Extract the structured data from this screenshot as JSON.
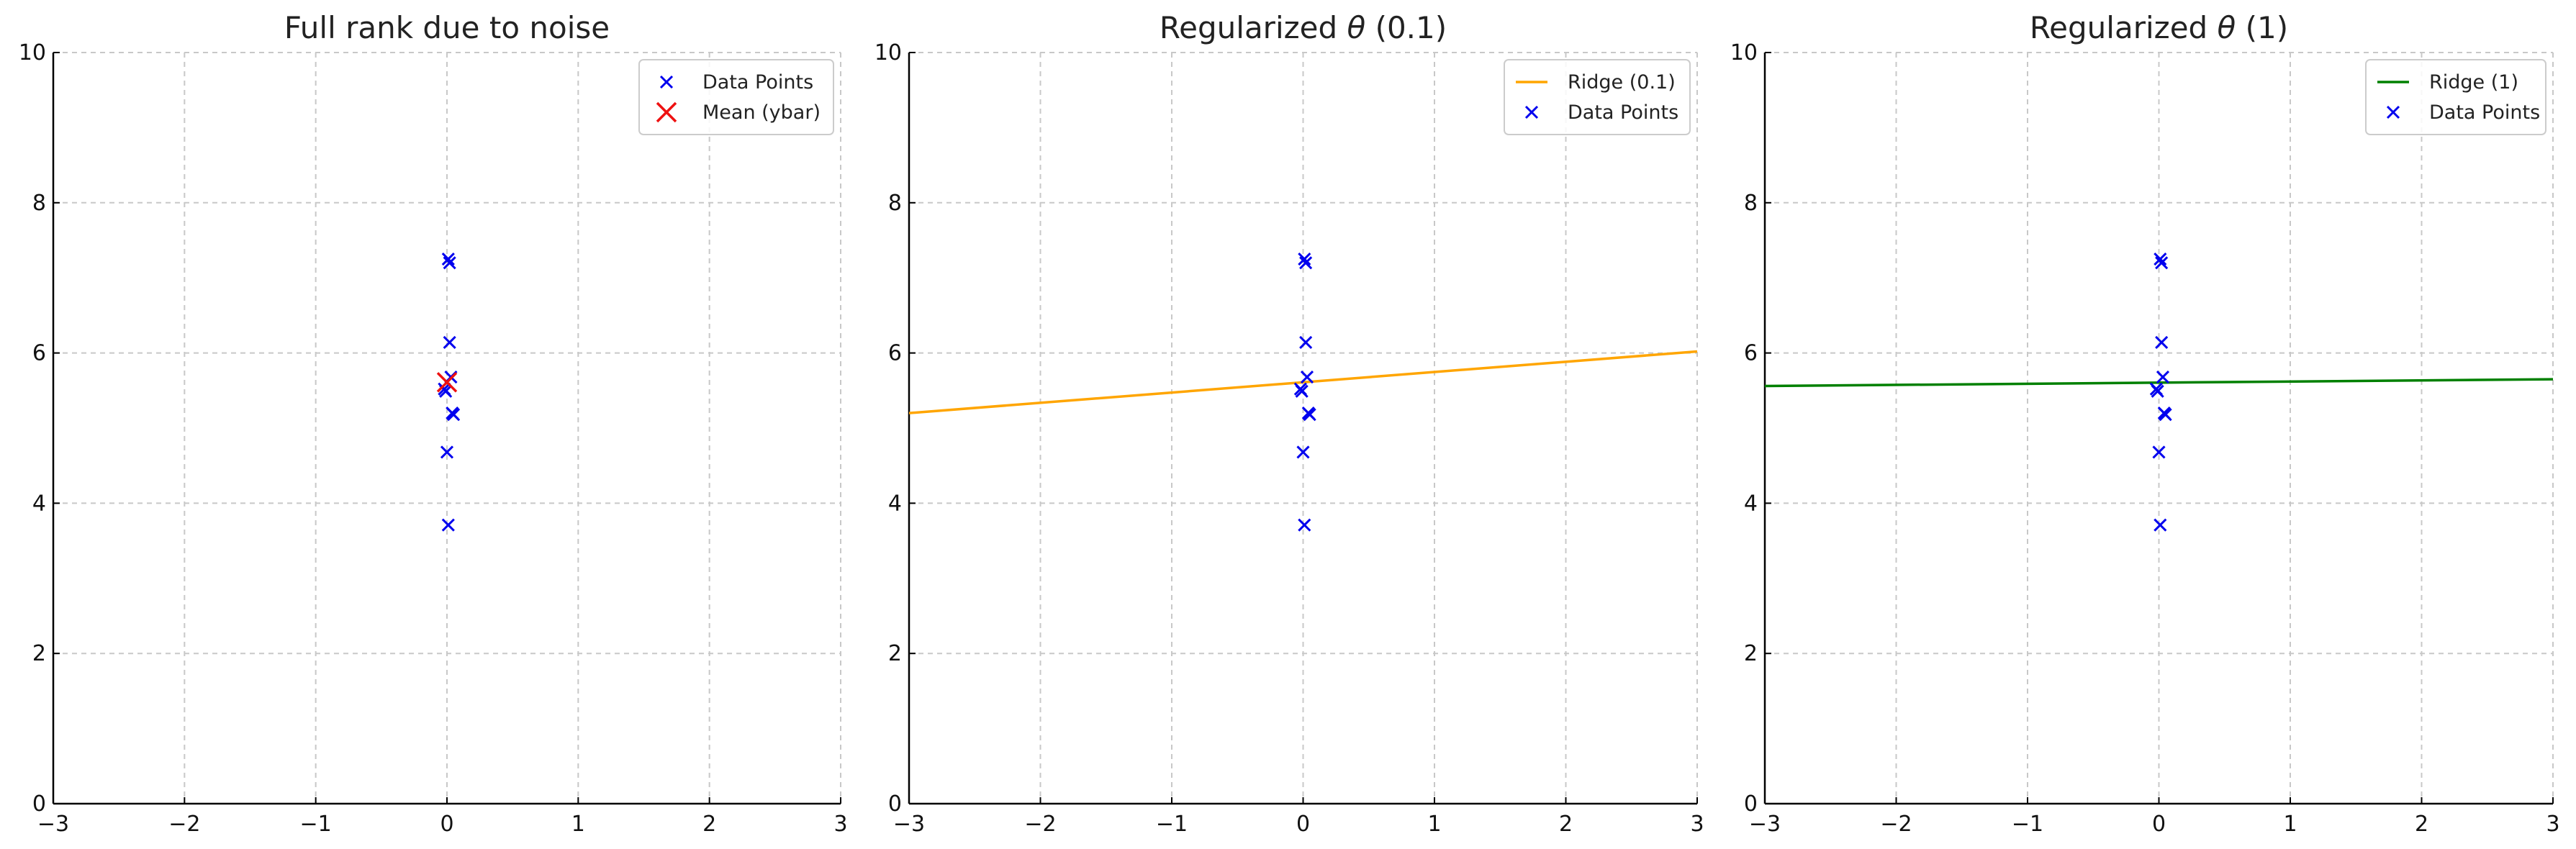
{
  "chart_data": [
    {
      "type": "scatter",
      "title": "Full rank due to noise",
      "xlabel": "",
      "ylabel": "",
      "xlim": [
        -3,
        3
      ],
      "ylim": [
        0,
        10
      ],
      "xticks": [
        "−3",
        "−2",
        "−1",
        "0",
        "1",
        "2",
        "3"
      ],
      "yticks": [
        "0",
        "2",
        "4",
        "6",
        "8",
        "10"
      ],
      "grid": true,
      "legend_position": "top-right",
      "series": [
        {
          "name": "Data Points",
          "type": "scatter",
          "marker": "x",
          "color": "#0000ee",
          "points": [
            [
              0.01,
              7.25
            ],
            [
              0.02,
              7.2
            ],
            [
              0.02,
              6.14
            ],
            [
              0.03,
              5.68
            ],
            [
              -0.01,
              5.49
            ],
            [
              -0.02,
              5.52
            ],
            [
              0.04,
              5.2
            ],
            [
              0.05,
              5.18
            ],
            [
              0.0,
              4.68
            ],
            [
              0.01,
              3.71
            ]
          ]
        },
        {
          "name": "Mean (ybar)",
          "type": "scatter",
          "marker": "x-large",
          "color": "#ee1111",
          "points": [
            [
              0.0,
              5.61
            ]
          ]
        }
      ]
    },
    {
      "type": "line",
      "title": "Regularized θ (0.1)",
      "xlabel": "",
      "ylabel": "",
      "xlim": [
        -3,
        3
      ],
      "ylim": [
        0,
        10
      ],
      "xticks": [
        "−3",
        "−2",
        "−1",
        "0",
        "1",
        "2",
        "3"
      ],
      "yticks": [
        "0",
        "2",
        "4",
        "6",
        "8",
        "10"
      ],
      "grid": true,
      "legend_position": "top-right",
      "series": [
        {
          "name": "Ridge (0.1)",
          "type": "line",
          "color": "#ffa500",
          "points": [
            [
              -3,
              5.2
            ],
            [
              3,
              6.02
            ]
          ]
        },
        {
          "name": "Data Points",
          "type": "scatter",
          "marker": "x",
          "color": "#0000ee",
          "points": [
            [
              0.01,
              7.25
            ],
            [
              0.02,
              7.2
            ],
            [
              0.02,
              6.14
            ],
            [
              0.03,
              5.68
            ],
            [
              -0.01,
              5.49
            ],
            [
              -0.02,
              5.52
            ],
            [
              0.04,
              5.2
            ],
            [
              0.05,
              5.18
            ],
            [
              0.0,
              4.68
            ],
            [
              0.01,
              3.71
            ]
          ]
        }
      ]
    },
    {
      "type": "line",
      "title": "Regularized θ (1)",
      "xlabel": "",
      "ylabel": "",
      "xlim": [
        -3,
        3
      ],
      "ylim": [
        0,
        10
      ],
      "xticks": [
        "−3",
        "−2",
        "−1",
        "0",
        "1",
        "2",
        "3"
      ],
      "yticks": [
        "0",
        "2",
        "4",
        "6",
        "8",
        "10"
      ],
      "grid": true,
      "legend_position": "top-right",
      "series": [
        {
          "name": "Ridge (1)",
          "type": "line",
          "color": "#008000",
          "points": [
            [
              -3,
              5.56
            ],
            [
              3,
              5.65
            ]
          ]
        },
        {
          "name": "Data Points",
          "type": "scatter",
          "marker": "x",
          "color": "#0000ee",
          "points": [
            [
              0.01,
              7.25
            ],
            [
              0.02,
              7.2
            ],
            [
              0.02,
              6.14
            ],
            [
              0.03,
              5.68
            ],
            [
              -0.01,
              5.49
            ],
            [
              -0.02,
              5.52
            ],
            [
              0.04,
              5.2
            ],
            [
              0.05,
              5.18
            ],
            [
              0.0,
              4.68
            ],
            [
              0.01,
              3.71
            ]
          ]
        }
      ]
    }
  ]
}
